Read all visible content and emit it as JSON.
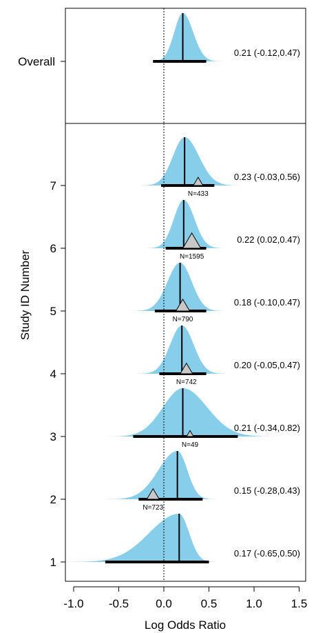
{
  "chart_data": {
    "type": "forest-density",
    "xlabel": "Log Odds Ratio",
    "ylabel": "Study ID Number",
    "xlim": [
      -1.1,
      1.6
    ],
    "xticks": [
      -1.0,
      -0.5,
      0.0,
      0.5,
      1.0,
      1.5
    ],
    "xtick_labels": [
      "-1.0",
      "-0.5",
      "0.0",
      "0.5",
      "1.0",
      "1.5"
    ],
    "null_line": 0.0,
    "fill_color": "#87ceeb",
    "marker_color": "#c8c8c8",
    "overall": {
      "label": "Overall",
      "estimate": 0.21,
      "ci": [
        -0.12,
        0.47
      ],
      "ci_label": "0.21 (-0.12,0.47)",
      "density_left": 0.095,
      "density_right": 0.115,
      "density_range": [
        -1.1,
        1.6
      ]
    },
    "studies": [
      {
        "id": "1",
        "estimate": 0.17,
        "ci": [
          -0.65,
          0.5
        ],
        "ci_label": "0.17 (-0.65,0.50)",
        "observed": null,
        "n_label": "",
        "marker_size": 0,
        "density_left": 0.33,
        "density_right": 0.11,
        "density_range": [
          -1.1,
          1.05
        ]
      },
      {
        "id": "2",
        "estimate": 0.15,
        "ci": [
          -0.28,
          0.43
        ],
        "ci_label": "0.15 (-0.28,0.43)",
        "observed": -0.12,
        "n_label": "N=723",
        "marker_size": 9,
        "density_left": 0.21,
        "density_right": 0.11,
        "density_range": [
          -1.1,
          0.7
        ]
      },
      {
        "id": "3",
        "estimate": 0.21,
        "ci": [
          -0.34,
          0.82
        ],
        "ci_label": "0.21 (-0.34,0.82)",
        "observed": 0.29,
        "n_label": "N=49",
        "marker_size": 5,
        "density_left": 0.22,
        "density_right": 0.27,
        "density_range": [
          -1.1,
          1.6
        ]
      },
      {
        "id": "4",
        "estimate": 0.2,
        "ci": [
          -0.05,
          0.47
        ],
        "ci_label": "0.20 (-0.05,0.47)",
        "observed": 0.25,
        "n_label": "N=742",
        "marker_size": 9,
        "density_left": 0.13,
        "density_right": 0.13,
        "density_range": [
          -0.42,
          0.88
        ]
      },
      {
        "id": "5",
        "estimate": 0.18,
        "ci": [
          -0.1,
          0.47
        ],
        "ci_label": "0.18 (-0.10,0.47)",
        "observed": 0.21,
        "n_label": "N=790",
        "marker_size": 10,
        "density_left": 0.14,
        "density_right": 0.13,
        "density_range": [
          -0.63,
          0.8
        ]
      },
      {
        "id": "6",
        "estimate": 0.22,
        "ci": [
          0.02,
          0.47
        ],
        "ci_label": "0.22 (0.02,0.47)",
        "observed": 0.31,
        "n_label": "N=1595",
        "marker_size": 13,
        "density_left": 0.11,
        "density_right": 0.12,
        "density_range": [
          -0.22,
          0.82
        ]
      },
      {
        "id": "7",
        "estimate": 0.23,
        "ci": [
          -0.03,
          0.56
        ],
        "ci_label": "0.23 (-0.03,0.56)",
        "observed": 0.38,
        "n_label": "N=433",
        "marker_size": 7,
        "density_left": 0.13,
        "density_right": 0.16,
        "density_range": [
          -0.45,
          1.0
        ]
      }
    ]
  }
}
